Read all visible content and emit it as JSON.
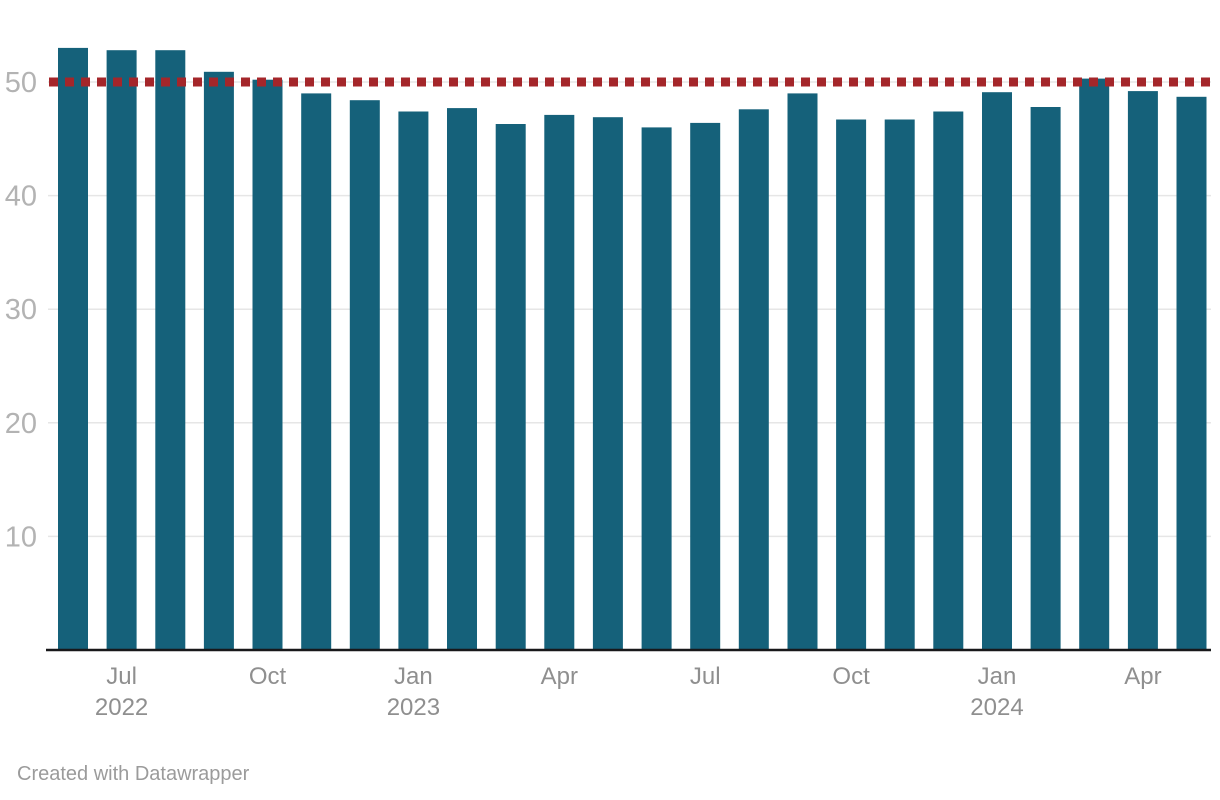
{
  "chart_data": {
    "type": "bar",
    "categories": [
      "Jun 2022",
      "Jul 2022",
      "Aug 2022",
      "Sep 2022",
      "Oct 2022",
      "Nov 2022",
      "Dec 2022",
      "Jan 2023",
      "Feb 2023",
      "Mar 2023",
      "Apr 2023",
      "May 2023",
      "Jun 2023",
      "Jul 2023",
      "Aug 2023",
      "Sep 2023",
      "Oct 2023",
      "Nov 2023",
      "Dec 2023",
      "Jan 2024",
      "Feb 2024",
      "Mar 2024",
      "Apr 2024",
      "May 2024"
    ],
    "values": [
      53.0,
      52.8,
      52.8,
      50.9,
      50.2,
      49.0,
      48.4,
      47.4,
      47.7,
      46.3,
      47.1,
      46.9,
      46.0,
      46.4,
      47.6,
      49.0,
      46.7,
      46.7,
      47.4,
      49.1,
      47.8,
      50.3,
      49.2,
      48.7
    ],
    "ylim": [
      0,
      55
    ],
    "yticks": [
      10,
      20,
      30,
      40,
      50
    ],
    "xticks": [
      {
        "index": 1,
        "line1": "Jul",
        "line2": "2022"
      },
      {
        "index": 4,
        "line1": "Oct",
        "line2": ""
      },
      {
        "index": 7,
        "line1": "Jan",
        "line2": "2023"
      },
      {
        "index": 10,
        "line1": "Apr",
        "line2": ""
      },
      {
        "index": 13,
        "line1": "Jul",
        "line2": ""
      },
      {
        "index": 16,
        "line1": "Oct",
        "line2": ""
      },
      {
        "index": 19,
        "line1": "Jan",
        "line2": "2024"
      },
      {
        "index": 22,
        "line1": "Apr",
        "line2": ""
      }
    ],
    "threshold": {
      "value": 50,
      "style": "dotted",
      "color": "#a4262a"
    },
    "grid": true,
    "legend": "none",
    "colors": {
      "bar": "#15617a",
      "threshold_line": "#a4262a",
      "gridline": "#e6e6e6",
      "axis_line": "#18181a",
      "y_tick_label": "#b3b3b3",
      "x_tick_label": "#8f8f8f"
    }
  },
  "footer": {
    "attribution": "Created with Datawrapper"
  }
}
